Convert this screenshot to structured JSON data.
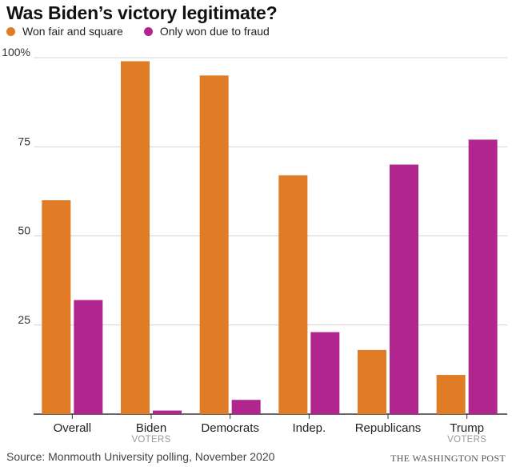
{
  "chart_data": {
    "type": "bar",
    "title": "Was Biden’s victory legitimate?",
    "categories": [
      {
        "label": "Overall",
        "sublabel": ""
      },
      {
        "label": "Biden",
        "sublabel": "VOTERS"
      },
      {
        "label": "Democrats",
        "sublabel": ""
      },
      {
        "label": "Indep.",
        "sublabel": ""
      },
      {
        "label": "Republicans",
        "sublabel": ""
      },
      {
        "label": "Trump",
        "sublabel": "VOTERS"
      }
    ],
    "series": [
      {
        "name": "Won fair and square",
        "color": "#e07b26",
        "values": [
          60,
          99,
          95,
          67,
          18,
          11
        ]
      },
      {
        "name": "Only won due to fraud",
        "color": "#b0258e",
        "values": [
          32,
          1,
          4,
          23,
          70,
          77
        ]
      }
    ],
    "ylim": [
      0,
      100
    ],
    "yticks": [
      {
        "value": 100,
        "label": "100%"
      },
      {
        "value": 75,
        "label": "75"
      },
      {
        "value": 50,
        "label": "50"
      },
      {
        "value": 25,
        "label": "25"
      }
    ],
    "xlabel": "",
    "ylabel": "",
    "grid": true,
    "legend": "top-left"
  },
  "footer": {
    "source": "Source: Monmouth University polling, November 2020",
    "credit": "THE WASHINGTON POST"
  }
}
